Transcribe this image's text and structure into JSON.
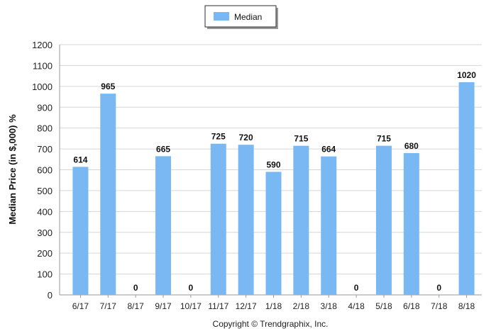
{
  "chart_data": {
    "type": "bar",
    "title": "",
    "xlabel": "",
    "ylabel": "Median Price (in $,000) %",
    "ylim": [
      0,
      1200
    ],
    "yticks": [
      0,
      100,
      200,
      300,
      400,
      500,
      600,
      700,
      800,
      900,
      1000,
      1100,
      1200
    ],
    "grid": true,
    "legend_position": "top-center",
    "categories": [
      "6/17",
      "7/17",
      "8/17",
      "9/17",
      "10/17",
      "11/17",
      "12/17",
      "1/18",
      "2/18",
      "3/18",
      "4/18",
      "5/18",
      "6/18",
      "7/18",
      "8/18"
    ],
    "series": [
      {
        "name": "Median",
        "color": "#79B8F2",
        "values": [
          614,
          965,
          0,
          665,
          0,
          725,
          720,
          590,
          715,
          664,
          0,
          715,
          680,
          0,
          1020
        ]
      }
    ]
  },
  "footer": "Copyright © Trendgraphix, Inc."
}
